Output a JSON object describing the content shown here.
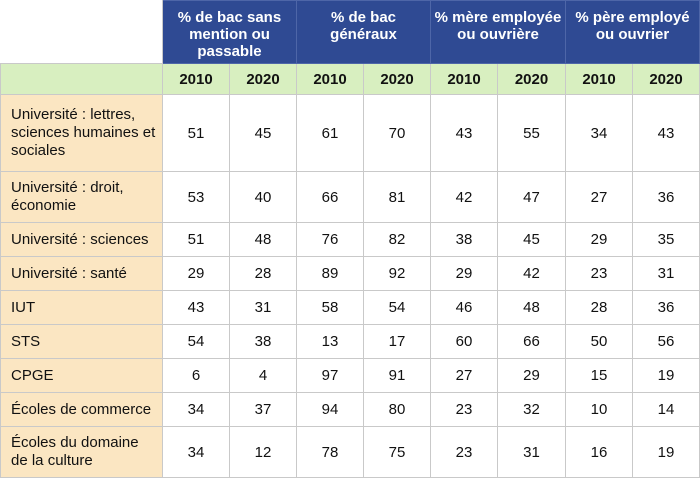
{
  "groups": [
    "% de bac sans mention ou passable",
    "% de bac généraux",
    "% mère employée ou ouvrière",
    "% père employé ou ouvrier"
  ],
  "years": [
    "2010",
    "2020"
  ],
  "rows": [
    {
      "label": "Université : lettres, sciences humaines et sociales",
      "values": [
        "51",
        "45",
        "61",
        "70",
        "43",
        "55",
        "34",
        "43"
      ]
    },
    {
      "label": "Université : droit, économie",
      "values": [
        "53",
        "40",
        "66",
        "81",
        "42",
        "47",
        "27",
        "36"
      ]
    },
    {
      "label": "Université : sciences",
      "values": [
        "51",
        "48",
        "76",
        "82",
        "38",
        "45",
        "29",
        "35"
      ]
    },
    {
      "label": "Université : santé",
      "values": [
        "29",
        "28",
        "89",
        "92",
        "29",
        "42",
        "23",
        "31"
      ]
    },
    {
      "label": "IUT",
      "values": [
        "43",
        "31",
        "58",
        "54",
        "46",
        "48",
        "28",
        "36"
      ]
    },
    {
      "label": "STS",
      "values": [
        "54",
        "38",
        "13",
        "17",
        "60",
        "66",
        "50",
        "56"
      ]
    },
    {
      "label": "CPGE",
      "values": [
        "6",
        "4",
        "97",
        "91",
        "27",
        "29",
        "15",
        "19"
      ]
    },
    {
      "label": "Écoles de commerce",
      "values": [
        "34",
        "37",
        "94",
        "80",
        "23",
        "32",
        "10",
        "14"
      ]
    },
    {
      "label": "Écoles du domaine de la culture",
      "values": [
        "34",
        "12",
        "78",
        "75",
        "23",
        "31",
        "16",
        "19"
      ]
    }
  ],
  "colors": {
    "header_bg": "#2f4a93",
    "year_row_bg": "#d8efc0",
    "row_label_bg": "#fbe6c2"
  }
}
